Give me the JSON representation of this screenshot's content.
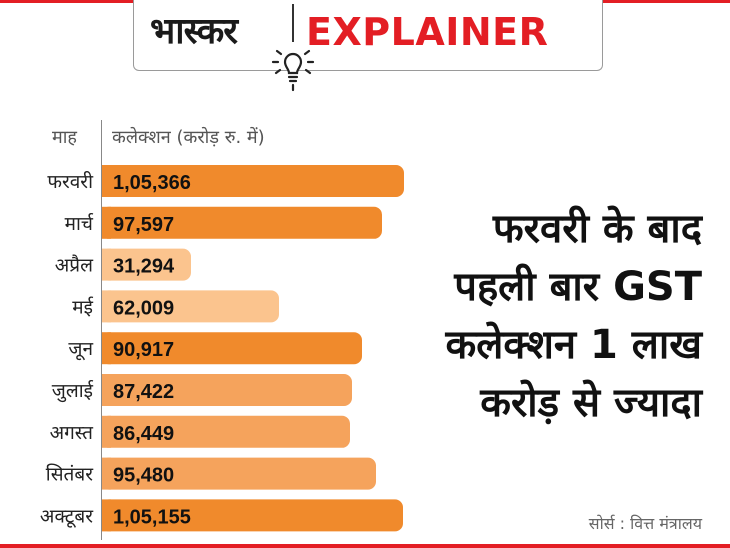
{
  "header": {
    "logo_hindi": "भास्कर",
    "logo_english": "EXPLAINER",
    "icon": "lightbulb-icon"
  },
  "chart_data": {
    "type": "bar",
    "orientation": "horizontal",
    "column_headers": {
      "category": "माह",
      "value": "कलेक्शन (करोड़ रु. में)"
    },
    "categories": [
      "फरवरी",
      "मार्च",
      "अप्रैल",
      "मई",
      "जून",
      "जुलाई",
      "अगस्त",
      "सितंबर",
      "अक्टूबर"
    ],
    "values": [
      105366,
      97597,
      31294,
      62009,
      90917,
      87422,
      86449,
      95480,
      105155
    ],
    "value_labels": [
      "1,05,366",
      "97,597",
      "31,294",
      "62,009",
      "90,917",
      "87,422",
      "86,449",
      "95,480",
      "1,05,155"
    ],
    "highlight": [
      true,
      true,
      false,
      false,
      true,
      false,
      false,
      false,
      true
    ],
    "colors": {
      "highlight": "#f08a2c",
      "normal": "#f5a35c",
      "light": "#fbc48e"
    },
    "legend": "none",
    "grid": false
  },
  "headline": {
    "lines": [
      "फरवरी के बाद",
      "पहली बार GST",
      "कलेक्शन 1 लाख",
      "करोड़ से ज्यादा"
    ]
  },
  "source": "सोर्स : वित्त मंत्रालय",
  "colors": {
    "brand_red": "#e31e24"
  }
}
